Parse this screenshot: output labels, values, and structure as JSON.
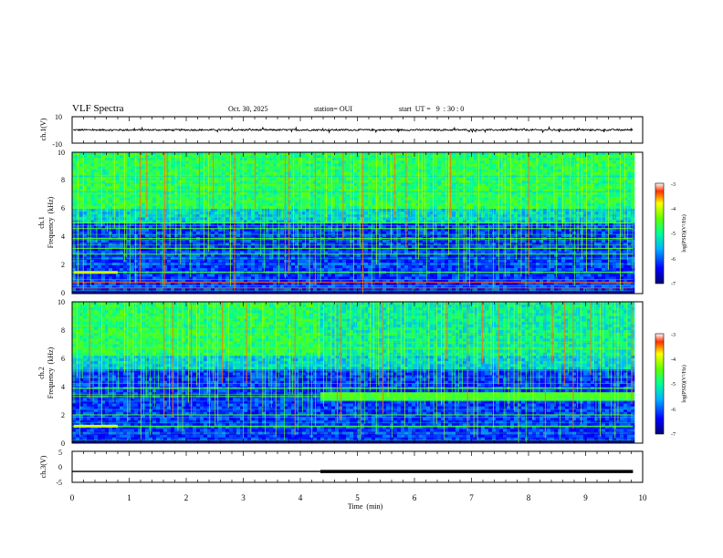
{
  "header": {
    "title": "VLF Spectra",
    "date": "Oct. 30, 2025",
    "station": "station= OUI",
    "start": "start  UT =   9  : 30 : 0"
  },
  "colors": {
    "background": "#ffffff",
    "axis": "#000000",
    "trace": "#000000"
  },
  "chart_data": [
    {
      "type": "line",
      "name": "waveform-ch1",
      "ylabel": "ch.1(V)",
      "ylim": [
        -10,
        10
      ],
      "yticks": [
        10,
        -10
      ],
      "xlim": [
        0,
        10
      ],
      "baseline": 0,
      "noise_amplitude": 0.6
    },
    {
      "type": "heatmap",
      "name": "spectrogram-ch1",
      "ylabel_line1": "ch.1",
      "ylabel_line2": "Frequency  (kHz)",
      "ylim": [
        0,
        10
      ],
      "yticks": [
        0,
        2,
        4,
        6,
        8,
        10
      ],
      "xlim": [
        0,
        10
      ],
      "data_end_min": 9.83,
      "colorbar": {
        "label": "log(PSD)(V²/Hz)",
        "range": [
          -7,
          -3
        ],
        "ticks": [
          -3,
          -4,
          -5,
          -6,
          -7
        ]
      },
      "bands_khz": [
        0.4,
        0.8,
        1.5,
        2.8,
        3.2,
        3.9,
        4.6,
        5.0
      ]
    },
    {
      "type": "heatmap",
      "name": "spectrogram-ch2",
      "ylabel_line1": "ch.2",
      "ylabel_line2": "Frequency  (kHz)",
      "ylim": [
        0,
        10
      ],
      "yticks": [
        0,
        2,
        4,
        6,
        8,
        10
      ],
      "xlim": [
        0,
        10
      ],
      "data_end_min": 9.83,
      "colorbar": {
        "label": "log(PSD)(V²/Hz)",
        "range": [
          -7,
          -3
        ],
        "ticks": [
          -3,
          -4,
          -5,
          -6,
          -7
        ]
      },
      "bands_khz": [
        1.2,
        2.0,
        3.3,
        3.9,
        6.7
      ]
    },
    {
      "type": "line",
      "name": "waveform-ch3",
      "ylabel": "ch.3(V)",
      "ylim": [
        -5,
        5
      ],
      "yticks": [
        5,
        0,
        -5
      ],
      "xlim": [
        0,
        10
      ],
      "xlabel": "Time  (min)",
      "xticks": [
        0,
        1,
        2,
        3,
        4,
        5,
        6,
        7,
        8,
        9,
        10
      ],
      "segments": [
        {
          "x0": 0,
          "x1": 4.35,
          "y": -1.5,
          "weight": "thin"
        },
        {
          "x0": 4.35,
          "x1": 9.83,
          "y": -1.5,
          "weight": "thick"
        }
      ]
    }
  ]
}
